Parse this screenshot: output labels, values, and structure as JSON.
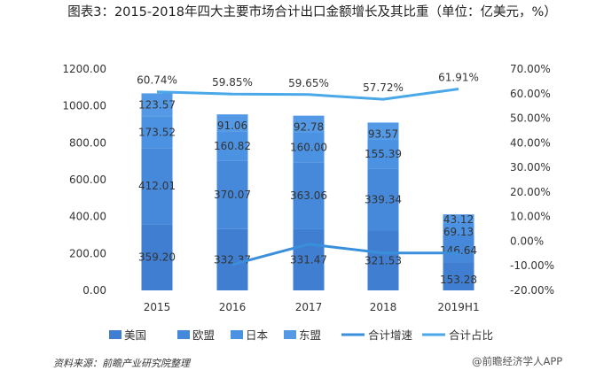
{
  "chart_data": {
    "type": "bar",
    "title": "图表3：2015-2018年四大主要市场合计出口金额增长及其比重（单位：亿美元，%）",
    "categories": [
      "2015",
      "2016",
      "2017",
      "2018",
      "2019H1"
    ],
    "left_axis": {
      "min": 0,
      "max": 1200,
      "step": 200,
      "ticks": [
        "0.00",
        "200.00",
        "400.00",
        "600.00",
        "800.00",
        "1000.00",
        "1200.00"
      ]
    },
    "right_axis": {
      "min": -20,
      "max": 70,
      "step": 10,
      "ticks": [
        "-20.00%",
        "-10.00%",
        "0.00%",
        "10.00%",
        "20.00%",
        "30.00%",
        "40.00%",
        "50.00%",
        "60.00%",
        "70.00%"
      ]
    },
    "series": [
      {
        "name": "美国",
        "type": "stacked-bar",
        "color": "#3f7ed0",
        "values": [
          359.2,
          332.37,
          331.47,
          321.53,
          153.28
        ],
        "labels": [
          "359.20",
          "332.37",
          "331.47",
          "321.53",
          "153.28"
        ]
      },
      {
        "name": "欧盟",
        "type": "stacked-bar",
        "color": "#4689db",
        "values": [
          412.01,
          370.07,
          363.06,
          339.34,
          146.64
        ],
        "labels": [
          "412.01",
          "370.07",
          "363.06",
          "339.34",
          "146.64"
        ]
      },
      {
        "name": "日本",
        "type": "stacked-bar",
        "color": "#4c92e2",
        "values": [
          173.52,
          160.82,
          160.0,
          155.39,
          69.13
        ],
        "labels": [
          "173.52",
          "160.82",
          "160.00",
          "155.39",
          "69.13"
        ]
      },
      {
        "name": "东盟",
        "type": "stacked-bar",
        "color": "#5399e6",
        "values": [
          123.57,
          91.06,
          92.78,
          93.57,
          43.12
        ],
        "labels": [
          "123.57",
          "91.06",
          "92.78",
          "93.57",
          "43.12"
        ]
      },
      {
        "name": "合计增速",
        "type": "line",
        "axis": "right",
        "color": "#3a8fdc",
        "values": [
          null,
          -9.5,
          -1.2,
          -4.8,
          -4.8
        ]
      },
      {
        "name": "合计占比",
        "type": "line",
        "axis": "right",
        "color": "#4aa8e8",
        "values": [
          60.74,
          59.85,
          59.65,
          57.72,
          61.91
        ],
        "labels": [
          "60.74%",
          "59.85%",
          "59.65%",
          "57.72%",
          "61.91%"
        ]
      }
    ]
  },
  "source": "资料来源：前瞻产业研究院整理",
  "watermark": "@前瞻经济学人APP"
}
